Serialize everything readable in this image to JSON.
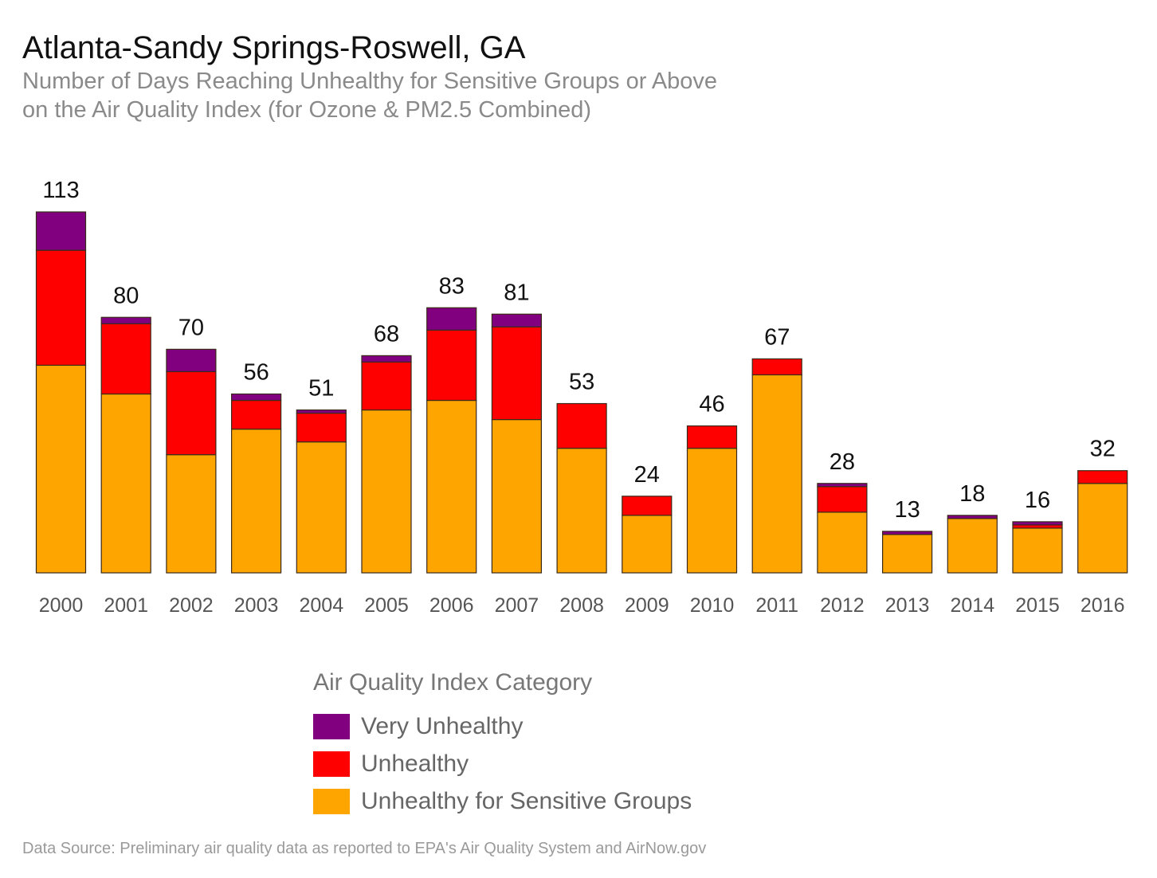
{
  "chart_data": {
    "type": "bar",
    "stacked": true,
    "title": "Atlanta-Sandy Springs-Roswell, GA",
    "subtitle": [
      "Number of Days Reaching Unhealthy for Sensitive Groups or Above",
      "on the Air Quality Index (for Ozone & PM2.5 Combined)"
    ],
    "categories": [
      "2000",
      "2001",
      "2002",
      "2003",
      "2004",
      "2005",
      "2006",
      "2007",
      "2008",
      "2009",
      "2010",
      "2011",
      "2012",
      "2013",
      "2014",
      "2015",
      "2016"
    ],
    "series": [
      {
        "name": "Unhealthy for Sensitive Groups",
        "color": "#FFA500",
        "values": [
          65,
          56,
          37,
          45,
          41,
          51,
          54,
          48,
          39,
          18,
          39,
          62,
          19,
          12,
          17,
          14,
          28
        ]
      },
      {
        "name": "Unhealthy",
        "color": "#FF0000",
        "values": [
          36,
          22,
          26,
          9,
          9,
          15,
          22,
          29,
          14,
          6,
          7,
          5,
          8,
          0,
          0,
          1,
          4
        ]
      },
      {
        "name": "Very Unhealthy",
        "color": "#800080",
        "values": [
          12,
          2,
          7,
          2,
          1,
          2,
          7,
          4,
          0,
          0,
          0,
          0,
          1,
          1,
          1,
          1,
          0
        ]
      }
    ],
    "totals": [
      113,
      80,
      70,
      56,
      51,
      68,
      83,
      81,
      53,
      24,
      46,
      67,
      28,
      13,
      18,
      16,
      32
    ],
    "ylim": [
      0,
      113
    ],
    "grid": false,
    "legend": {
      "title": "Air Quality Index Category",
      "placement": "bottom",
      "entries": [
        "Very Unhealthy",
        "Unhealthy",
        "Unhealthy for Sensitive Groups"
      ]
    }
  },
  "source": "Data Source: Preliminary air quality data as reported to EPA's Air Quality System and AirNow.gov"
}
